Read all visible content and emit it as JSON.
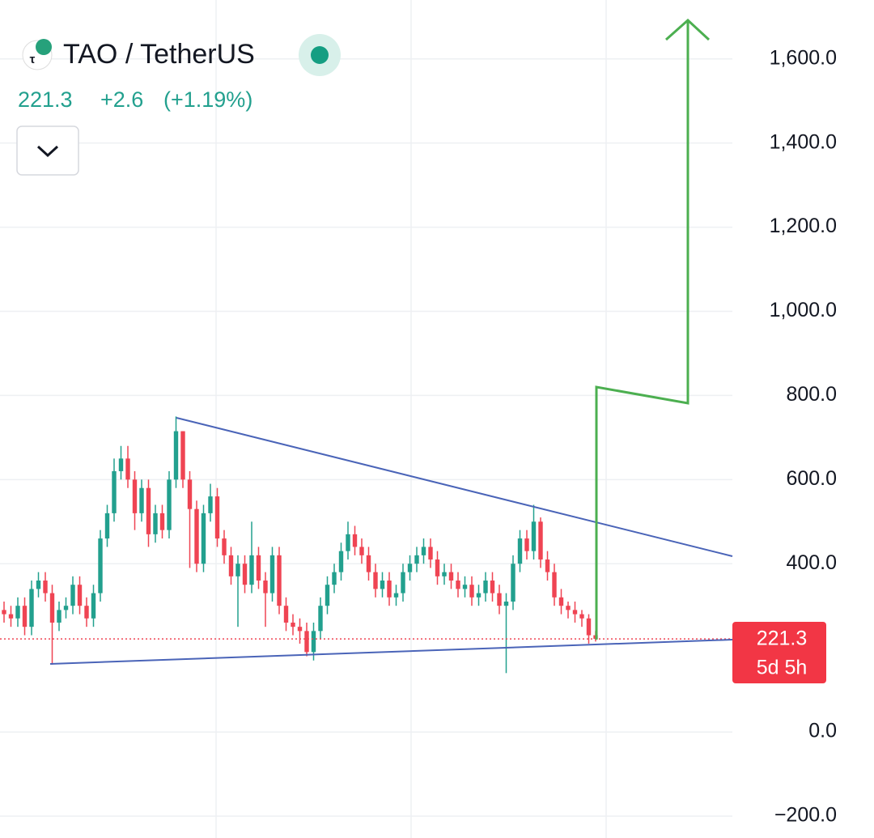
{
  "chart_data": {
    "type": "candlestick",
    "title": "TAO / TetherUS",
    "last_price": 221.3,
    "change": {
      "value": 2.6,
      "label": "+2.6"
    },
    "change_pct": {
      "value": 1.19,
      "label": "(+1.19%)"
    },
    "countdown": "5d 5h",
    "up_color": "#22a08e",
    "down_color": "#ef4453",
    "grid": true,
    "ylim": [
      -252,
      1740
    ],
    "yticks": [
      {
        "value": 1600,
        "label": "1,600.0"
      },
      {
        "value": 1400,
        "label": "1,400.0"
      },
      {
        "value": 1200,
        "label": "1,200.0"
      },
      {
        "value": 1000,
        "label": "1,000.0"
      },
      {
        "value": 800,
        "label": "800.0"
      },
      {
        "value": 600,
        "label": "600.0"
      },
      {
        "value": 400,
        "label": "400.0"
      },
      {
        "value": 0,
        "label": "0.0"
      },
      {
        "value": -200,
        "label": "−200.0"
      }
    ],
    "open": [
      290,
      280,
      270,
      300,
      250,
      340,
      360,
      330,
      260,
      290,
      300,
      350,
      300,
      270,
      330,
      460,
      520,
      620,
      650,
      600,
      520,
      580,
      470,
      520,
      480,
      600,
      715,
      600,
      530,
      400,
      520,
      560,
      460,
      420,
      370,
      400,
      350,
      420,
      360,
      330,
      420,
      300,
      260,
      250,
      240,
      190,
      240,
      300,
      350,
      380,
      430,
      470,
      440,
      420,
      380,
      340,
      360,
      320,
      330,
      380,
      400,
      420,
      440,
      410,
      370,
      380,
      360,
      340,
      350,
      320,
      330,
      360,
      330,
      300,
      310,
      400,
      460,
      430,
      500,
      410,
      380,
      320,
      300,
      290,
      280,
      270,
      230
    ],
    "high": [
      310,
      300,
      320,
      320,
      360,
      380,
      380,
      350,
      310,
      320,
      370,
      370,
      320,
      350,
      480,
      540,
      650,
      680,
      680,
      620,
      600,
      600,
      540,
      540,
      620,
      750,
      715,
      620,
      550,
      540,
      590,
      580,
      480,
      440,
      420,
      420,
      500,
      440,
      380,
      440,
      440,
      320,
      280,
      270,
      260,
      260,
      320,
      370,
      400,
      450,
      500,
      490,
      460,
      440,
      400,
      380,
      380,
      350,
      400,
      420,
      440,
      460,
      460,
      430,
      400,
      400,
      380,
      370,
      370,
      350,
      380,
      380,
      350,
      330,
      420,
      480,
      480,
      540,
      510,
      430,
      400,
      340,
      310,
      310,
      290,
      280,
      240
    ],
    "low": [
      260,
      250,
      250,
      230,
      230,
      320,
      310,
      160,
      240,
      270,
      280,
      280,
      250,
      250,
      310,
      440,
      500,
      600,
      580,
      480,
      500,
      440,
      450,
      460,
      460,
      580,
      580,
      390,
      380,
      380,
      500,
      440,
      400,
      350,
      250,
      330,
      330,
      340,
      250,
      310,
      280,
      240,
      230,
      210,
      180,
      170,
      220,
      280,
      330,
      360,
      410,
      420,
      400,
      360,
      320,
      320,
      300,
      300,
      310,
      360,
      380,
      400,
      390,
      350,
      350,
      340,
      320,
      320,
      300,
      300,
      310,
      310,
      280,
      140,
      290,
      380,
      410,
      410,
      390,
      360,
      300,
      280,
      270,
      260,
      250,
      210,
      215
    ],
    "close": [
      280,
      270,
      300,
      250,
      340,
      360,
      330,
      260,
      290,
      300,
      350,
      300,
      270,
      330,
      460,
      520,
      620,
      650,
      600,
      520,
      580,
      470,
      520,
      480,
      600,
      715,
      600,
      530,
      400,
      520,
      560,
      460,
      420,
      370,
      400,
      350,
      420,
      360,
      330,
      420,
      300,
      260,
      250,
      240,
      190,
      240,
      300,
      350,
      380,
      430,
      470,
      440,
      420,
      380,
      340,
      360,
      320,
      330,
      380,
      400,
      420,
      440,
      410,
      370,
      380,
      360,
      340,
      350,
      320,
      330,
      360,
      330,
      300,
      310,
      400,
      460,
      430,
      500,
      410,
      380,
      320,
      300,
      290,
      280,
      270,
      230,
      221.3
    ]
  }
}
